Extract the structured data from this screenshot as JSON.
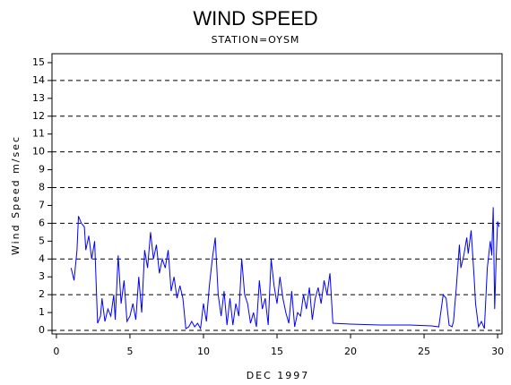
{
  "chart_data": {
    "type": "line",
    "title": "WIND SPEED",
    "subtitle": "STATION=OYSM",
    "x_label": "DEC 1997",
    "y_label": "Wind Speed m/sec",
    "color": "#0000ff",
    "grid": true,
    "xlim": [
      -0.3,
      30.3
    ],
    "xticks": [
      0,
      5,
      10,
      15,
      20,
      25,
      30
    ],
    "ylim": [
      -0.2,
      15.5
    ],
    "yticks": [
      0,
      1,
      2,
      3,
      4,
      5,
      6,
      7,
      8,
      9,
      10,
      11,
      12,
      13,
      14,
      15
    ],
    "gridlines": [
      0,
      2,
      4,
      6,
      8,
      10,
      12,
      14
    ],
    "x": [
      1.0,
      1.2,
      1.4,
      1.5,
      1.7,
      1.9,
      2.0,
      2.2,
      2.4,
      2.6,
      2.8,
      3.0,
      3.1,
      3.3,
      3.5,
      3.7,
      3.9,
      4.0,
      4.2,
      4.4,
      4.6,
      4.8,
      5.0,
      5.2,
      5.4,
      5.6,
      5.8,
      6.0,
      6.2,
      6.4,
      6.6,
      6.8,
      7.0,
      7.2,
      7.4,
      7.6,
      7.8,
      8.0,
      8.2,
      8.4,
      8.6,
      8.8,
      9.0,
      9.2,
      9.4,
      9.6,
      9.8,
      10.0,
      10.2,
      10.4,
      10.6,
      10.8,
      11.0,
      11.2,
      11.4,
      11.6,
      11.8,
      12.0,
      12.2,
      12.4,
      12.6,
      12.8,
      13.0,
      13.2,
      13.4,
      13.6,
      13.8,
      14.0,
      14.2,
      14.4,
      14.6,
      14.8,
      15.0,
      15.2,
      15.4,
      15.6,
      15.8,
      16.0,
      16.2,
      16.4,
      16.6,
      16.8,
      17.0,
      17.2,
      17.4,
      17.6,
      17.8,
      18.0,
      18.2,
      18.4,
      18.6,
      18.8,
      20.0,
      22.0,
      24.0,
      25.5,
      26.0,
      26.1,
      26.3,
      26.5,
      26.7,
      26.9,
      27.0,
      27.2,
      27.4,
      27.5,
      27.7,
      27.9,
      28.0,
      28.2,
      28.4,
      28.5,
      28.7,
      28.9,
      29.1,
      29.3,
      29.5,
      29.6,
      29.7,
      29.8,
      29.9,
      30.0,
      30.1
    ],
    "values": [
      3.5,
      2.8,
      4.5,
      6.4,
      6.0,
      5.8,
      4.5,
      5.3,
      4.0,
      5.0,
      0.4,
      0.8,
      1.8,
      0.5,
      1.2,
      0.8,
      2.0,
      0.6,
      4.2,
      1.5,
      2.8,
      0.5,
      0.8,
      1.5,
      0.6,
      3.0,
      1.0,
      4.5,
      3.5,
      5.5,
      4.0,
      4.8,
      3.2,
      4.0,
      3.5,
      4.5,
      2.2,
      3.0,
      1.8,
      2.5,
      1.8,
      0.1,
      0.2,
      0.5,
      0.2,
      0.4,
      0.1,
      1.5,
      0.5,
      2.5,
      4.0,
      5.2,
      2.0,
      0.8,
      2.2,
      0.3,
      1.8,
      0.3,
      1.5,
      0.8,
      4.0,
      2.0,
      1.5,
      0.4,
      1.0,
      0.2,
      2.8,
      1.2,
      1.8,
      0.3,
      4.0,
      2.5,
      1.5,
      3.0,
      1.8,
      1.0,
      0.4,
      2.2,
      0.2,
      1.0,
      0.8,
      2.0,
      1.2,
      2.4,
      0.6,
      1.8,
      2.4,
      1.5,
      2.8,
      2.0,
      3.2,
      0.4,
      0.35,
      0.3,
      0.3,
      0.25,
      0.2,
      0.8,
      2.0,
      1.8,
      0.3,
      0.2,
      0.5,
      2.5,
      4.8,
      3.5,
      4.2,
      5.2,
      4.3,
      5.6,
      3.0,
      1.5,
      0.2,
      0.5,
      0.1,
      3.5,
      5.0,
      4.2,
      6.9,
      1.2,
      4.0,
      6.1,
      5.8
    ]
  }
}
